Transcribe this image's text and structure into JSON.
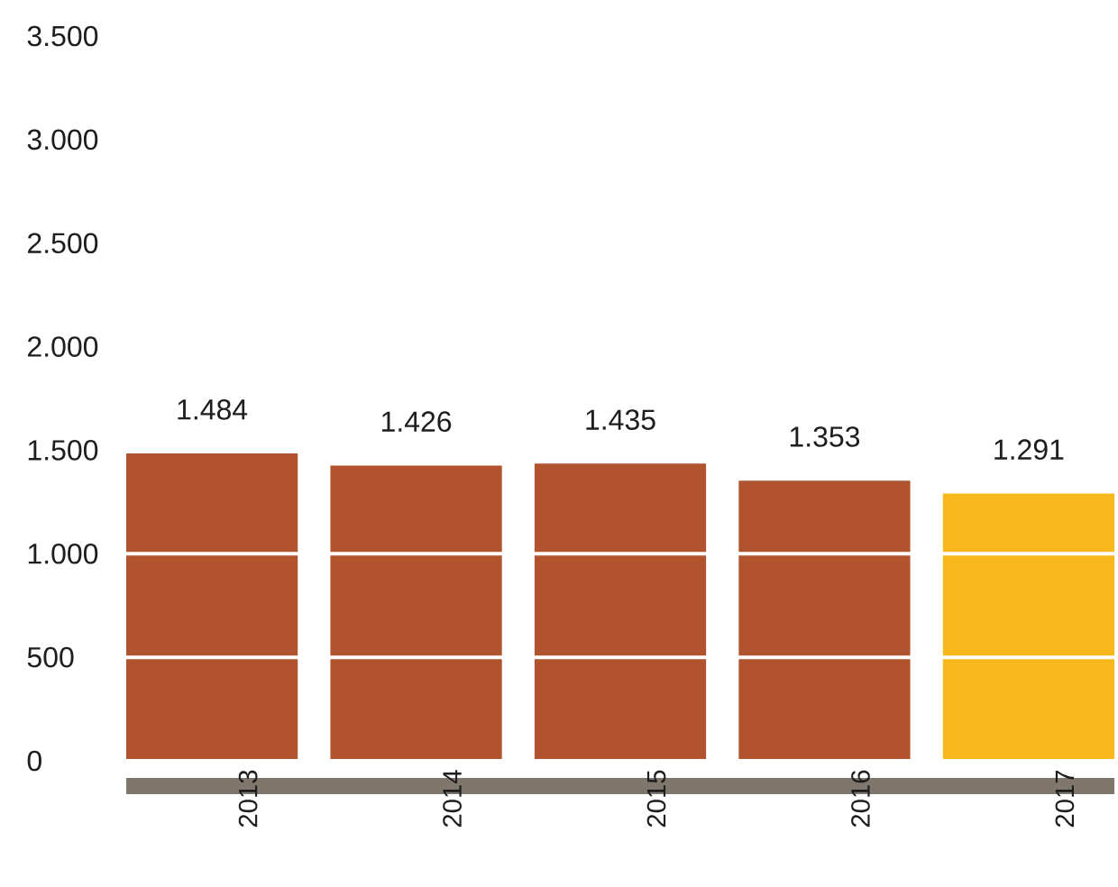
{
  "chart_data": {
    "type": "bar",
    "categories": [
      "2013",
      "2014",
      "2015",
      "2016",
      "2017"
    ],
    "values": [
      1484,
      1426,
      1435,
      1353,
      1291
    ],
    "value_labels": [
      "1.484",
      "1.426",
      "1.435",
      "1.353",
      "1.291"
    ],
    "colors": [
      "#b0532e",
      "#b0532e",
      "#b0532e",
      "#b0532e",
      "#f8b81c"
    ],
    "ylim": [
      0,
      3500
    ],
    "yticks": [
      {
        "value": 0,
        "label": "0"
      },
      {
        "value": 500,
        "label": "500"
      },
      {
        "value": 1000,
        "label": "1.000"
      },
      {
        "value": 1500,
        "label": "1.500"
      },
      {
        "value": 2000,
        "label": "2.000"
      },
      {
        "value": 2500,
        "label": "2.500"
      },
      {
        "value": 3000,
        "label": "3.000"
      },
      {
        "value": 3500,
        "label": "3.500"
      }
    ],
    "grid": "y"
  }
}
